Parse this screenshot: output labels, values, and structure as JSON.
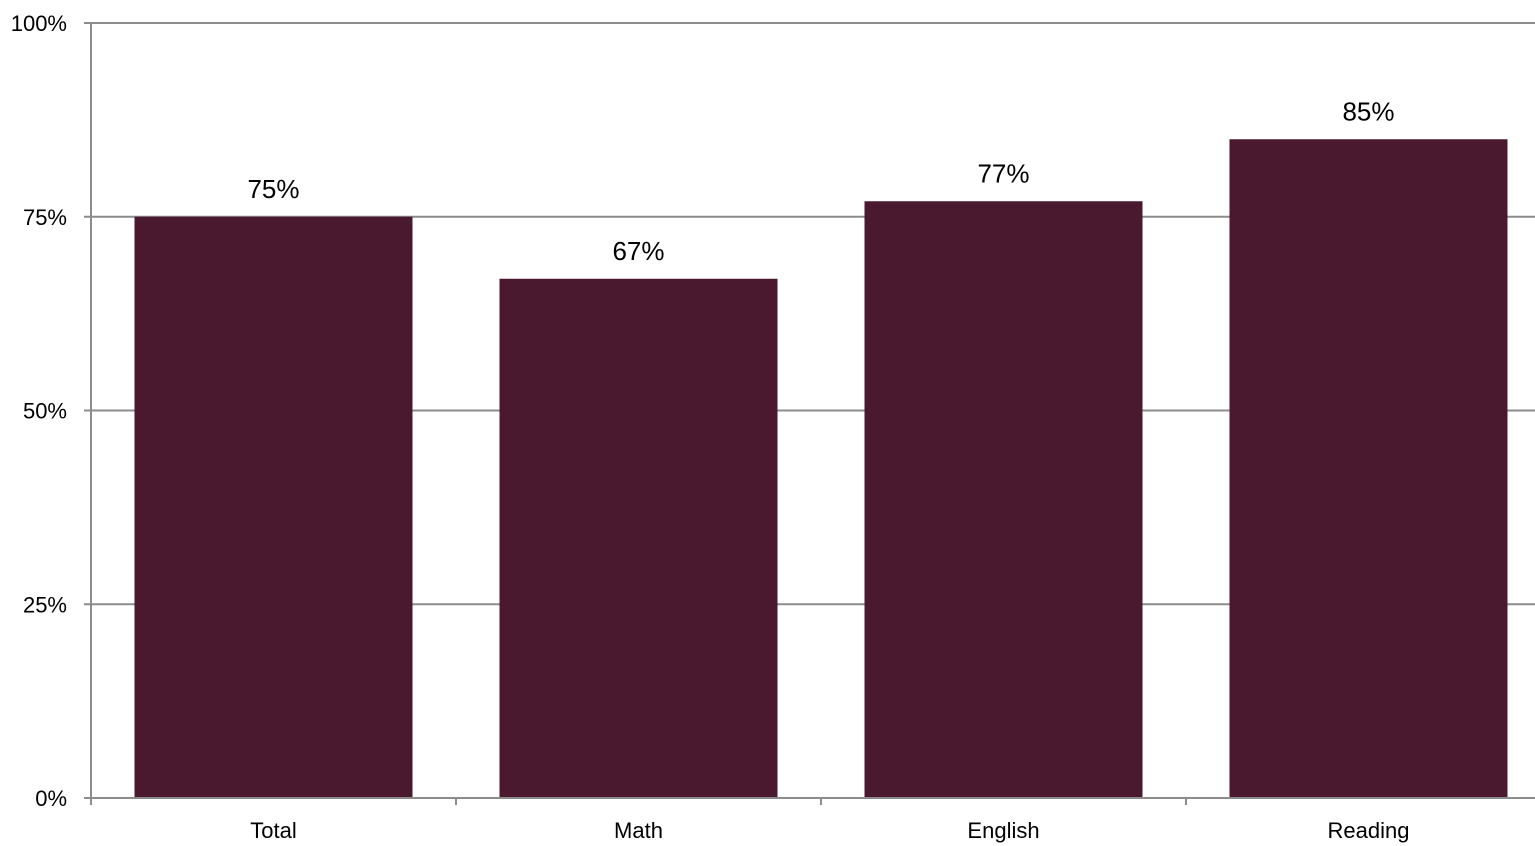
{
  "chart_data": {
    "type": "bar",
    "categories": [
      "Total",
      "Math",
      "English",
      "Reading"
    ],
    "values": [
      75,
      67,
      77,
      85
    ],
    "data_labels": [
      "75%",
      "67%",
      "77%",
      "85%"
    ],
    "y_ticks": [
      0,
      25,
      50,
      75,
      100
    ],
    "y_tick_labels": [
      "0%",
      "25%",
      "50%",
      "75%",
      "100%"
    ],
    "ylim": [
      0,
      100
    ],
    "title": "",
    "xlabel": "",
    "ylabel": "",
    "grid": true,
    "legend": "none",
    "colors": {
      "bar": "#4a1930",
      "gridline": "#8c8c8c",
      "axis": "#8c8c8c"
    }
  }
}
